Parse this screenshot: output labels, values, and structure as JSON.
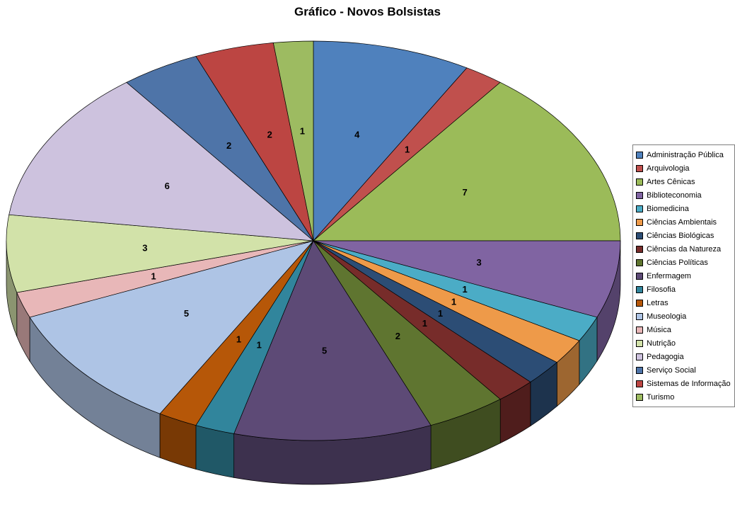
{
  "title": "Gráfico - Novos Bolsistas",
  "background": "#FFFFFF",
  "chart_data": {
    "type": "pie",
    "projection": "3d",
    "title": "Gráfico - Novos Bolsistas",
    "legend_position": "right",
    "data_labels": "value",
    "total": 48,
    "categories": [
      "Administração Pública",
      "Arquivologia",
      "Artes Cênicas",
      "Biblioteconomia",
      "Biomedicina",
      "Ciências Ambientais",
      "Ciências Biológicas",
      "Ciências da Natureza",
      "Ciências Políticas",
      "Enfermagem",
      "Filosofia",
      "Letras",
      "Museologia",
      "Música",
      "Nutrição",
      "Pedagogia",
      "Serviço Social",
      "Sistemas de Informação",
      "Turismo"
    ],
    "values": [
      4,
      1,
      7,
      3,
      1,
      1,
      1,
      1,
      2,
      5,
      1,
      1,
      5,
      1,
      3,
      6,
      2,
      2,
      1
    ],
    "colors": [
      "#4F81BD",
      "#C0504D",
      "#9BBB59",
      "#8064A2",
      "#4BACC6",
      "#EE9A49",
      "#2C4D75",
      "#772C2A",
      "#5F7530",
      "#5D4A76",
      "#31859C",
      "#B65708",
      "#AEC4E5",
      "#E8B7B8",
      "#D2E2A9",
      "#CDC2DE",
      "#4E74A8",
      "#BC4542",
      "#9DBB61"
    ]
  }
}
